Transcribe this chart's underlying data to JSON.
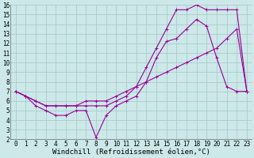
{
  "xlabel": "Windchill (Refroidissement éolien,°C)",
  "background_color": "#cce8e8",
  "grid_color": "#aacccc",
  "line_color": "#990099",
  "xlim": [
    -0.5,
    23.5
  ],
  "ylim": [
    2,
    16
  ],
  "xticks": [
    0,
    1,
    2,
    3,
    4,
    5,
    6,
    7,
    8,
    9,
    10,
    11,
    12,
    13,
    14,
    15,
    16,
    17,
    18,
    19,
    20,
    21,
    22,
    23
  ],
  "yticks": [
    2,
    3,
    4,
    5,
    6,
    7,
    8,
    9,
    10,
    11,
    12,
    13,
    14,
    15,
    16
  ],
  "line1_x": [
    0,
    1,
    2,
    3,
    4,
    5,
    6,
    7,
    8,
    9,
    10,
    11,
    12,
    13,
    14,
    15,
    16,
    17,
    18,
    19,
    20,
    21,
    22,
    23
  ],
  "line1_y": [
    7,
    6.5,
    5.5,
    5,
    4.5,
    4.5,
    5,
    5,
    2.2,
    4.5,
    5.5,
    6,
    6.5,
    8,
    10.5,
    12.2,
    12.5,
    13.5,
    14.5,
    13.8,
    10.5,
    7.5,
    7,
    7
  ],
  "line2_x": [
    0,
    1,
    2,
    3,
    4,
    5,
    6,
    7,
    8,
    9,
    10,
    11,
    12,
    13,
    14,
    15,
    16,
    17,
    18,
    19,
    20,
    21,
    22,
    23
  ],
  "line2_y": [
    7,
    6.5,
    6,
    5.5,
    5.5,
    5.5,
    5.5,
    5.5,
    5.5,
    5.5,
    6,
    6.5,
    7.5,
    9.5,
    11.5,
    13.5,
    15.5,
    15.5,
    16,
    15.5,
    15.5,
    15.5,
    15.5,
    7
  ],
  "line3_x": [
    0,
    2,
    3,
    4,
    5,
    6,
    7,
    8,
    9,
    10,
    11,
    12,
    13,
    14,
    15,
    16,
    17,
    18,
    19,
    20,
    21,
    22,
    23
  ],
  "line3_y": [
    7,
    6,
    5.5,
    5.5,
    5.5,
    5.5,
    6,
    6,
    6,
    6.5,
    7,
    7.5,
    8,
    8.5,
    9,
    9.5,
    10,
    10.5,
    11,
    11.5,
    12.5,
    13.5,
    7
  ],
  "fontsize_tick": 5.5,
  "fontsize_label": 6.5,
  "font_family": "monospace"
}
